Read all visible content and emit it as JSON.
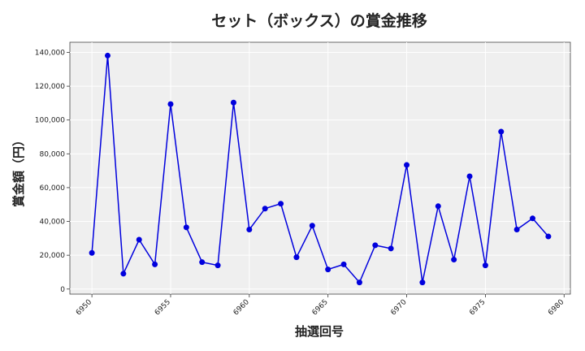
{
  "chart_data": {
    "type": "line",
    "title": "セット（ボックス）の賞金推移",
    "xlabel": "抽選回号",
    "ylabel": "賞金額（円）",
    "xlim": [
      6948.6,
      6980.4
    ],
    "ylim": [
      -3000,
      146000
    ],
    "x_ticks": [
      6950,
      6955,
      6960,
      6965,
      6970,
      6975,
      6980
    ],
    "y_ticks": [
      0,
      20000,
      40000,
      60000,
      80000,
      100000,
      120000,
      140000
    ],
    "x_tick_labels": [
      "6950",
      "6955",
      "6960",
      "6965",
      "6970",
      "6975",
      "6980"
    ],
    "y_tick_labels": [
      "0",
      "20,000",
      "40,000",
      "60,000",
      "80,000",
      "100,000",
      "120,000",
      "140,000"
    ],
    "grid": true,
    "series": [
      {
        "color": "#0000dd",
        "x": [
          6950,
          6951,
          6952,
          6953,
          6954,
          6955,
          6956,
          6957,
          6958,
          6959,
          6960,
          6961,
          6962,
          6963,
          6964,
          6965,
          6966,
          6967,
          6968,
          6969,
          6970,
          6971,
          6972,
          6973,
          6974,
          6975,
          6976,
          6977,
          6978,
          6979
        ],
        "y": [
          21400,
          138100,
          9100,
          29200,
          14600,
          109400,
          36500,
          15900,
          14000,
          110300,
          35200,
          47600,
          50500,
          18800,
          37500,
          11600,
          14600,
          3900,
          25900,
          24000,
          73400,
          3900,
          49000,
          17400,
          66700,
          14000,
          93100,
          35200,
          41800,
          31100
        ]
      }
    ]
  }
}
